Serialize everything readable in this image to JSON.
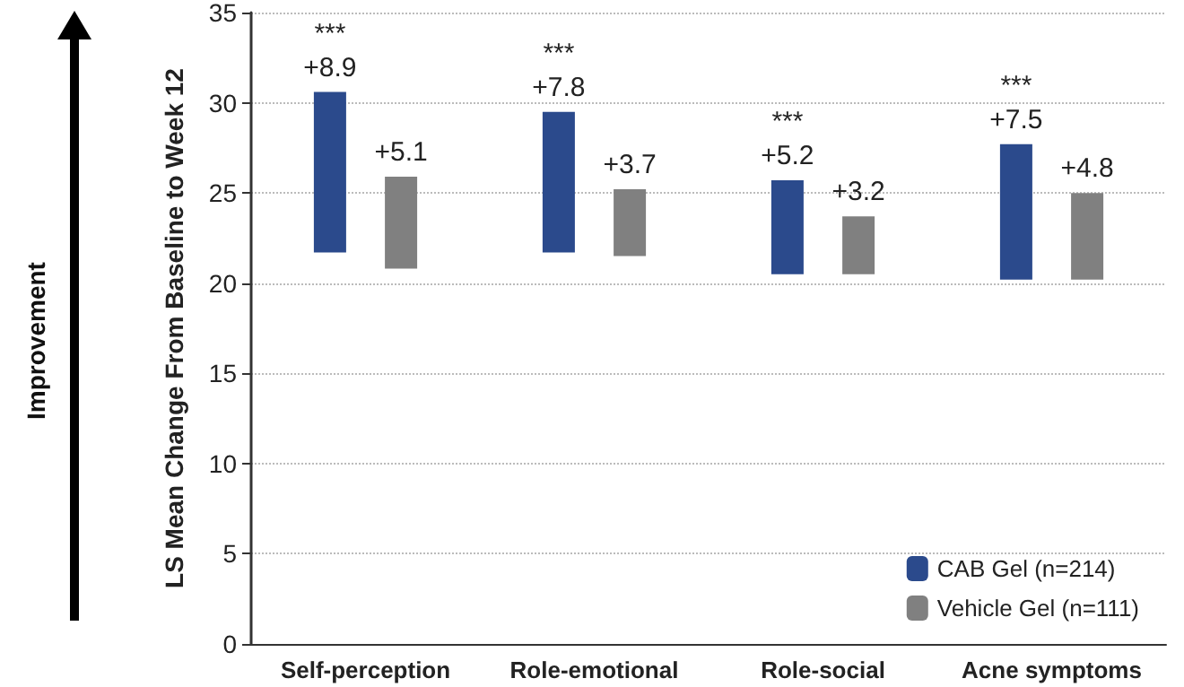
{
  "chart_data": {
    "type": "bar",
    "ylabel": "LS Mean Change From Baseline to Week 12",
    "categories": [
      "Self-perception",
      "Role-emotional",
      "Role-social",
      "Acne symptoms"
    ],
    "series": [
      {
        "name": "CAB Gel (n=214)",
        "color": "#2b4a8c",
        "base": [
          21.7,
          21.7,
          20.5,
          20.2
        ],
        "values": [
          8.9,
          7.8,
          5.2,
          7.5
        ],
        "value_labels": [
          "+8.9",
          "+7.8",
          "+5.2",
          "+7.5"
        ]
      },
      {
        "name": "Vehicle Gel (n=111)",
        "color": "#808080",
        "base": [
          20.8,
          21.5,
          20.5,
          20.2
        ],
        "values": [
          5.1,
          3.7,
          3.2,
          4.8
        ],
        "value_labels": [
          "+5.1",
          "+3.7",
          "+3.2",
          "+4.8"
        ]
      }
    ],
    "ylim": [
      0,
      35
    ],
    "yticks": [
      0,
      5,
      10,
      15,
      20,
      25,
      30,
      35
    ],
    "grid": "y",
    "legend": "bottom right",
    "annotations": [
      "Improvement",
      "***",
      "***",
      "***",
      "***"
    ]
  }
}
